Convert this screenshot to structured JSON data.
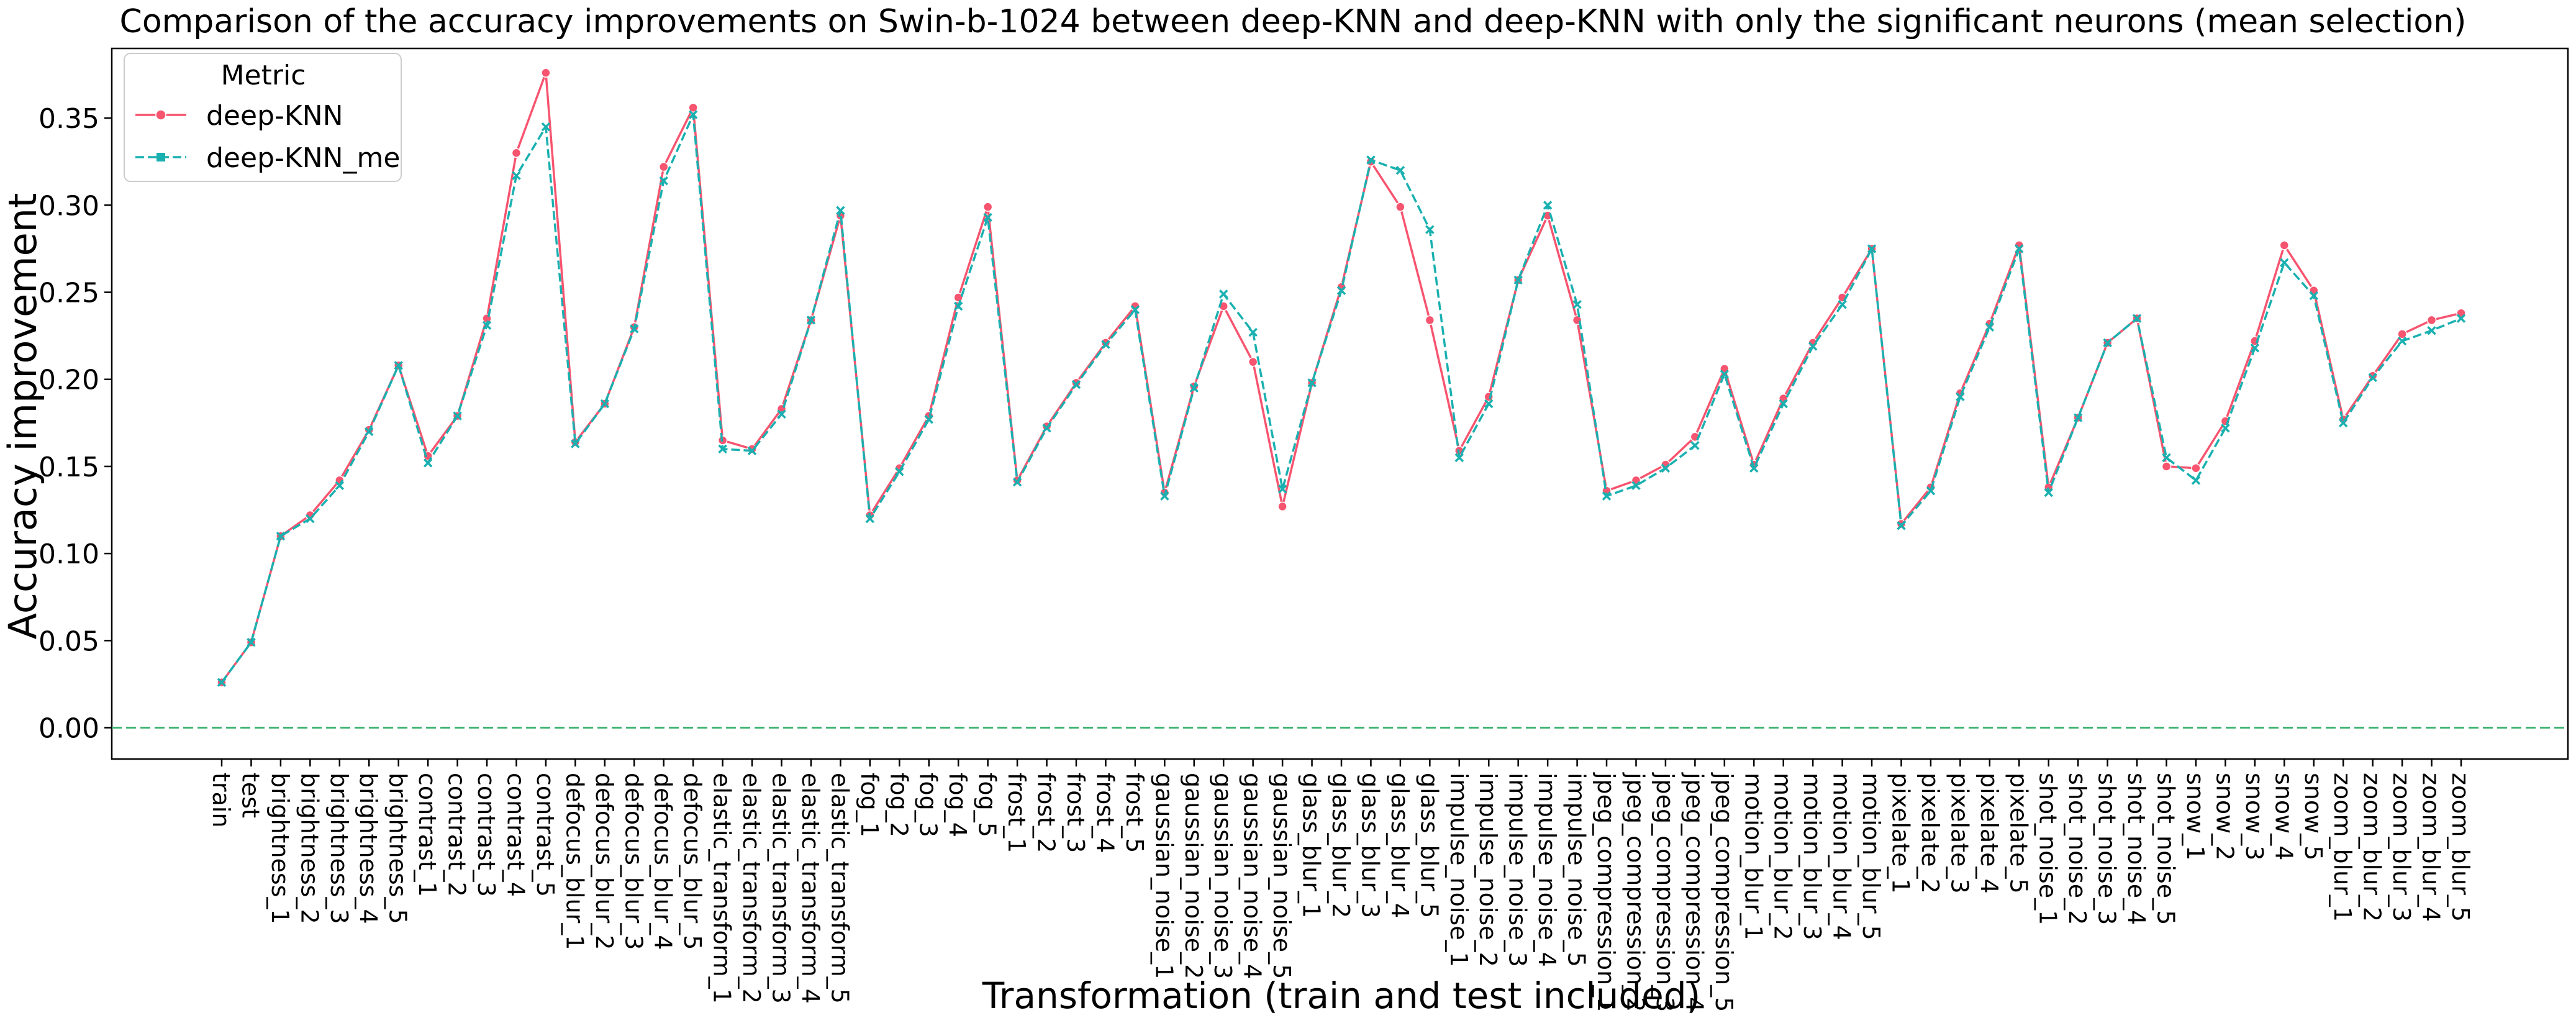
{
  "chart_data": {
    "type": "line",
    "title": "Comparison of the accuracy improvements on Swin-b-1024 between deep-KNN and deep-KNN with only the significant neurons (mean selection)",
    "xlabel": "Transformation (train and test included)",
    "ylabel": "Accuracy improvement",
    "ylim": [
      -0.018,
      0.39
    ],
    "yticks": [
      "0.00",
      "0.05",
      "0.10",
      "0.15",
      "0.20",
      "0.25",
      "0.30",
      "0.35"
    ],
    "grid": false,
    "legend": {
      "title": "Metric",
      "placement": "top-left"
    },
    "reference_line": {
      "y": 0.0,
      "color": "#3cb371",
      "style": "dashed"
    },
    "categories": [
      "train",
      "test",
      "brightness_1",
      "brightness_2",
      "brightness_3",
      "brightness_4",
      "brightness_5",
      "contrast_1",
      "contrast_2",
      "contrast_3",
      "contrast_4",
      "contrast_5",
      "defocus_blur_1",
      "defocus_blur_2",
      "defocus_blur_3",
      "defocus_blur_4",
      "defocus_blur_5",
      "elastic_transform_1",
      "elastic_transform_2",
      "elastic_transform_3",
      "elastic_transform_4",
      "elastic_transform_5",
      "fog_1",
      "fog_2",
      "fog_3",
      "fog_4",
      "fog_5",
      "frost_1",
      "frost_2",
      "frost_3",
      "frost_4",
      "frost_5",
      "gaussian_noise_1",
      "gaussian_noise_2",
      "gaussian_noise_3",
      "gaussian_noise_4",
      "gaussian_noise_5",
      "glass_blur_1",
      "glass_blur_2",
      "glass_blur_3",
      "glass_blur_4",
      "glass_blur_5",
      "impulse_noise_1",
      "impulse_noise_2",
      "impulse_noise_3",
      "impulse_noise_4",
      "impulse_noise_5",
      "jpeg_compression_1",
      "jpeg_compression_2",
      "jpeg_compression_3",
      "jpeg_compression_4",
      "jpeg_compression_5",
      "motion_blur_1",
      "motion_blur_2",
      "motion_blur_3",
      "motion_blur_4",
      "motion_blur_5",
      "pixelate_1",
      "pixelate_2",
      "pixelate_3",
      "pixelate_4",
      "pixelate_5",
      "shot_noise_1",
      "shot_noise_2",
      "shot_noise_3",
      "shot_noise_4",
      "shot_noise_5",
      "snow_1",
      "snow_2",
      "snow_3",
      "snow_4",
      "snow_5",
      "zoom_blur_1",
      "zoom_blur_2",
      "zoom_blur_3",
      "zoom_blur_4",
      "zoom_blur_5"
    ],
    "series": [
      {
        "name": "deep-KNN",
        "color": "#f7546f",
        "style": "solid",
        "marker": "circle",
        "values": [
          0.026,
          0.049,
          0.11,
          0.122,
          0.142,
          0.171,
          0.208,
          0.156,
          0.179,
          0.235,
          0.33,
          0.376,
          0.164,
          0.186,
          0.23,
          0.322,
          0.356,
          0.165,
          0.16,
          0.183,
          0.234,
          0.294,
          0.122,
          0.149,
          0.179,
          0.247,
          0.299,
          0.142,
          0.173,
          0.198,
          0.221,
          0.242,
          0.135,
          0.196,
          0.242,
          0.21,
          0.127,
          0.198,
          0.253,
          0.325,
          0.299,
          0.234,
          0.159,
          0.19,
          0.257,
          0.294,
          0.234,
          0.136,
          0.142,
          0.151,
          0.167,
          0.206,
          0.151,
          0.189,
          0.221,
          0.247,
          0.275,
          0.117,
          0.138,
          0.192,
          0.232,
          0.277,
          0.138,
          0.178,
          0.221,
          0.235,
          0.15,
          0.149,
          0.176,
          0.222,
          0.277,
          0.251,
          0.177,
          0.202,
          0.226,
          0.234,
          0.238
        ]
      },
      {
        "name": "deep-KNN_me",
        "color": "#1ab0b0",
        "style": "dashed",
        "marker": "x",
        "values": [
          0.026,
          0.049,
          0.11,
          0.12,
          0.139,
          0.17,
          0.208,
          0.152,
          0.179,
          0.231,
          0.317,
          0.345,
          0.163,
          0.186,
          0.229,
          0.314,
          0.352,
          0.16,
          0.159,
          0.18,
          0.234,
          0.297,
          0.12,
          0.147,
          0.177,
          0.242,
          0.293,
          0.141,
          0.172,
          0.197,
          0.22,
          0.24,
          0.133,
          0.195,
          0.249,
          0.227,
          0.137,
          0.198,
          0.251,
          0.326,
          0.32,
          0.286,
          0.155,
          0.186,
          0.257,
          0.3,
          0.243,
          0.133,
          0.139,
          0.149,
          0.162,
          0.203,
          0.149,
          0.186,
          0.219,
          0.243,
          0.275,
          0.116,
          0.136,
          0.19,
          0.23,
          0.275,
          0.135,
          0.178,
          0.221,
          0.235,
          0.155,
          0.142,
          0.172,
          0.218,
          0.267,
          0.248,
          0.175,
          0.201,
          0.222,
          0.228,
          0.235
        ]
      }
    ]
  }
}
